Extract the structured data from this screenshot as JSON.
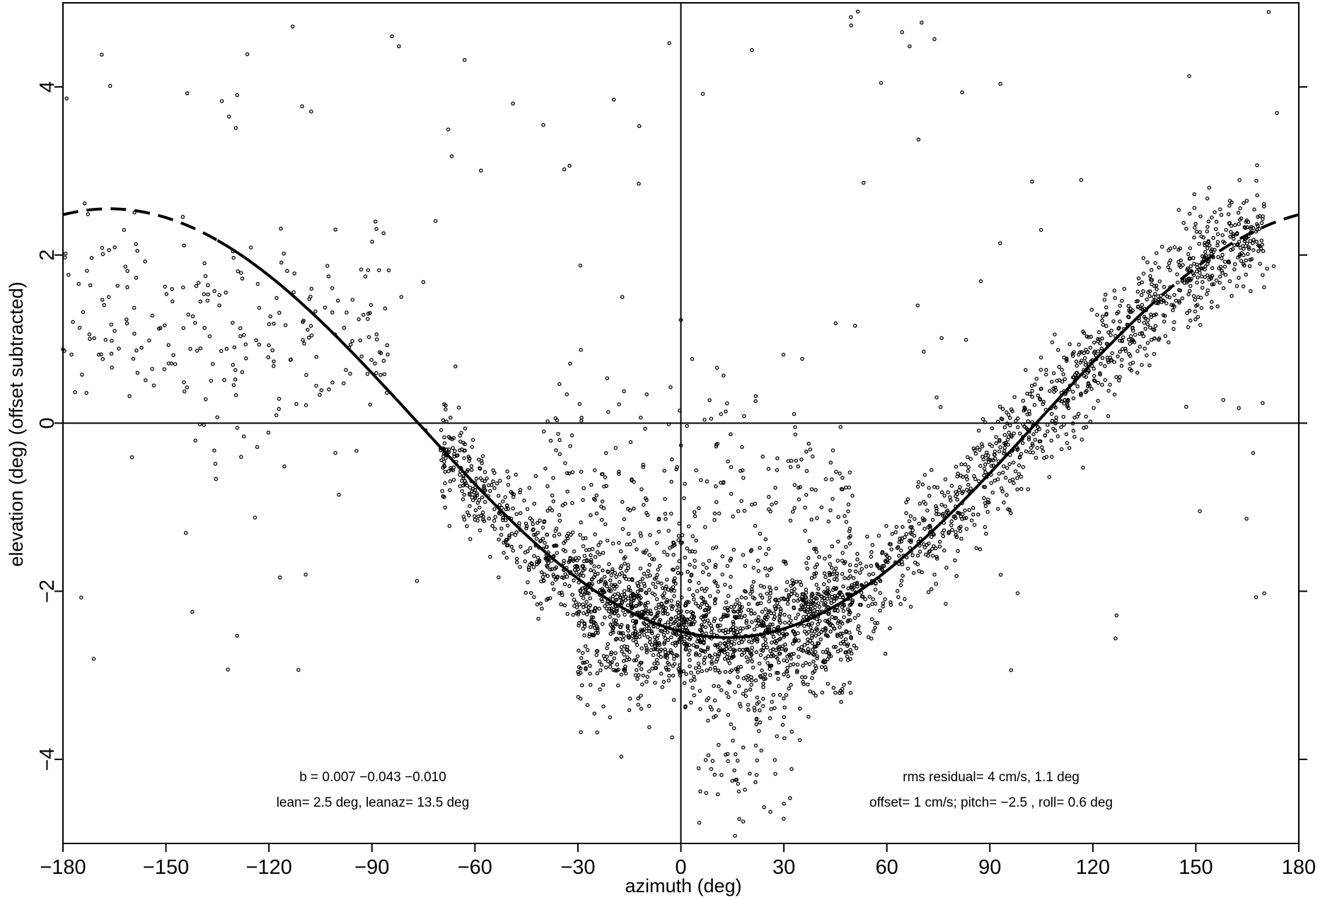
{
  "chart_data": {
    "type": "scatter",
    "xlabel": "azimuth (deg)",
    "ylabel": "elevation (deg)  (offset subtracted)",
    "xlim": [
      -180,
      180
    ],
    "ylim": [
      -5,
      5
    ],
    "x_ticks": [
      -180,
      -150,
      -120,
      -90,
      -60,
      -30,
      0,
      30,
      60,
      90,
      120,
      150,
      180
    ],
    "x_tick_labels": [
      "−180",
      "−150",
      "−120",
      "−90",
      "−60",
      "−30",
      "0",
      "30",
      "60",
      "90",
      "120",
      "150",
      "180"
    ],
    "y_ticks": [
      -4,
      -2,
      0,
      2,
      4
    ],
    "y_tick_labels": [
      "−4",
      "−2",
      "0",
      "2",
      "4"
    ],
    "reference_lines": {
      "x": 0,
      "y": 0
    },
    "fit_curve": {
      "description": "sinusoidal fit",
      "amplitude": 2.55,
      "phase_deg": 13.5,
      "points": [
        [
          -180,
          2.48
        ],
        [
          -165,
          2.55
        ],
        [
          -150,
          2.45
        ],
        [
          -135,
          2.15
        ],
        [
          -120,
          1.71
        ],
        [
          -105,
          1.17
        ],
        [
          -90,
          0.55
        ],
        [
          -75,
          -0.08
        ],
        [
          -60,
          -0.68
        ],
        [
          -45,
          -1.23
        ],
        [
          -30,
          -1.71
        ],
        [
          -15,
          -2.11
        ],
        [
          0,
          -2.46
        ],
        [
          13.5,
          -2.55
        ],
        [
          30,
          -2.45
        ],
        [
          45,
          -2.18
        ],
        [
          60,
          -1.76
        ],
        [
          75,
          -1.24
        ],
        [
          90,
          -0.63
        ],
        [
          105,
          0.0
        ],
        [
          120,
          0.63
        ],
        [
          135,
          1.24
        ],
        [
          150,
          1.76
        ],
        [
          165,
          2.18
        ],
        [
          180,
          2.48
        ]
      ],
      "solid_range": [
        -135,
        135
      ],
      "dashed_ranges": [
        [
          -180,
          -135
        ],
        [
          135,
          180
        ]
      ]
    },
    "scatter_clusters": [
      {
        "region": "main dense band along fit curve",
        "x_range": [
          -70,
          170
        ],
        "y_center": "fit",
        "spread": 0.5
      },
      {
        "region": "dense cloud near minimum",
        "x_range": [
          -30,
          50
        ],
        "y_range": [
          -4.9,
          -0.5
        ]
      },
      {
        "region": "left sparse group",
        "x_range": [
          -180,
          -80
        ],
        "y_range": [
          -1.0,
          3.2
        ]
      },
      {
        "region": "sparse outliers",
        "x_range": [
          -180,
          180
        ],
        "y_range": [
          -5,
          5
        ]
      }
    ],
    "annotations": {
      "b_text": "b =  0.007 −0.043 −0.010",
      "lean_text": "lean= 2.5 deg, leanaz= 13.5 deg",
      "rms_text": "rms residual= 4 cm/s, 1.1 deg",
      "offset_text": "offset= 1 cm/s; pitch= −2.5 , roll=  0.6 deg"
    }
  }
}
